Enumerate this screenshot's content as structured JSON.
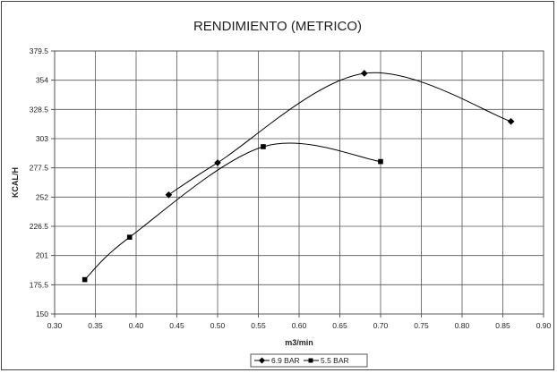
{
  "chart_data": {
    "type": "line",
    "title": "RENDIMIENTO (METRICO)",
    "xlabel": "m3/min",
    "ylabel": "KCAL/H",
    "xlim": [
      0.3,
      0.9
    ],
    "ylim": [
      150,
      379.5
    ],
    "x_ticks": [
      "0.30",
      "0.35",
      "0.40",
      "0.45",
      "0.50",
      "0.55",
      "0.60",
      "0.65",
      "0.70",
      "0.75",
      "0.80",
      "0.85",
      "0.90"
    ],
    "y_ticks": [
      "150",
      "175.5",
      "201",
      "226.5",
      "252",
      "277.5",
      "303",
      "328.5",
      "354",
      "379.5"
    ],
    "grid": true,
    "legend_position": "bottom",
    "series": [
      {
        "name": "6.9 BAR",
        "marker": "diamond",
        "color": "#000000",
        "x": [
          0.44,
          0.5,
          0.68,
          0.86
        ],
        "y": [
          254,
          282,
          360,
          318
        ]
      },
      {
        "name": "5.5 BAR",
        "marker": "square",
        "color": "#000000",
        "x": [
          0.337,
          0.392,
          0.556,
          0.7
        ],
        "y": [
          180,
          217,
          296,
          283
        ]
      }
    ]
  }
}
